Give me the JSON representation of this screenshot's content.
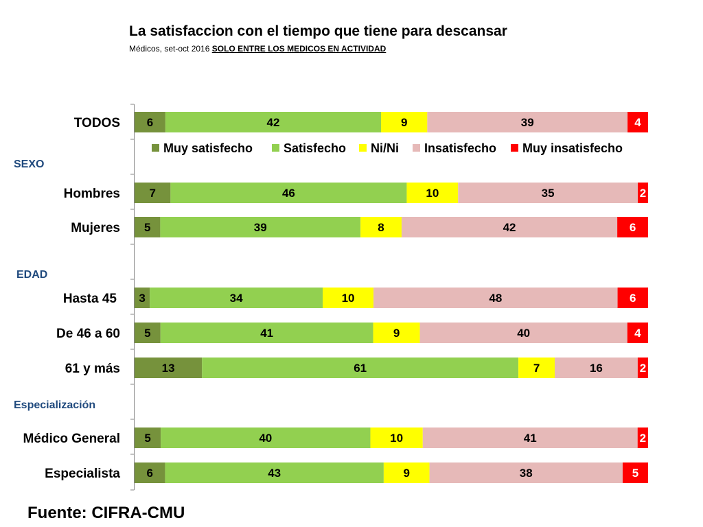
{
  "title": "La satisfaccion con el tiempo que tiene para descansar",
  "subtitle_main": "Médicos, set-oct 2016 ",
  "subtitle_highlight": "SOLO ENTRE LOS MEDICOS EN ACTIVIDAD",
  "source": "Fuente: CIFRA-CMU",
  "chart_data": {
    "type": "bar",
    "orientation": "horizontal",
    "stacked": true,
    "percent_stacked": true,
    "title": "La satisfaccion con el tiempo que tiene para descansar",
    "legend_position": "top",
    "categories": [
      "TODOS",
      "Hombres",
      "Mujeres",
      "Hasta 45",
      "De 46 a 60",
      "61 y más",
      "Médico General",
      "Especialista"
    ],
    "sections": [
      {
        "label": "SEXO",
        "before": "Hombres"
      },
      {
        "label": "EDAD",
        "before": "Hasta 45"
      },
      {
        "label": "Especialización",
        "before": "Médico General"
      }
    ],
    "series": [
      {
        "name": "Muy satisfecho",
        "color": "#76923c",
        "values": [
          6,
          7,
          5,
          3,
          5,
          13,
          5,
          6
        ]
      },
      {
        "name": "Satisfecho",
        "color": "#92d050",
        "values": [
          42,
          46,
          39,
          34,
          41,
          61,
          40,
          43
        ]
      },
      {
        "name": "Ni/Ni",
        "color": "#ffff00",
        "values": [
          9,
          10,
          8,
          10,
          9,
          7,
          10,
          9
        ]
      },
      {
        "name": "Insatisfecho",
        "color": "#e6b9b8",
        "values": [
          39,
          35,
          42,
          48,
          40,
          16,
          41,
          38
        ]
      },
      {
        "name": "Muy insatisfecho",
        "color": "#ff0000",
        "values": [
          4,
          2,
          6,
          6,
          4,
          2,
          2,
          5
        ]
      }
    ],
    "section_color": "#1f497d"
  }
}
